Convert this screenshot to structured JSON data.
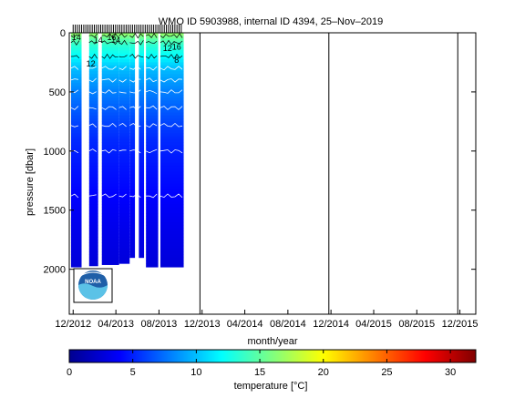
{
  "chart_data": {
    "type": "heatmap",
    "title": "WMO ID 5903988, internal ID 4394, 25–Nov–2019",
    "xlabel": "month/year",
    "ylabel": "pressure [dbar]",
    "x_tick_labels": [
      "12/2012",
      "04/2013",
      "08/2013",
      "12/2013",
      "04/2014",
      "08/2014",
      "12/2014",
      "04/2015",
      "08/2015",
      "12/2015"
    ],
    "x_range": [
      "2012-11-20",
      "2016-01-15"
    ],
    "ylim": [
      0,
      2380
    ],
    "y_reversed": true,
    "y_ticks": [
      0,
      500,
      1000,
      1500,
      2000
    ],
    "grid": false,
    "vertical_lines": [
      "2013-11-25",
      "2014-11-25",
      "2015-11-25"
    ],
    "colorbar": {
      "label": "temperature [°C]",
      "range": [
        0,
        32
      ],
      "ticks": [
        0,
        5,
        10,
        15,
        20,
        25,
        30
      ],
      "colormap": "jet"
    },
    "profile_dates": [
      "2012-12-01",
      "2012-12-07",
      "2012-12-13",
      "2012-12-19",
      "2012-12-25",
      "2012-12-31",
      "2013-01-06",
      "2013-01-12",
      "2013-01-18",
      "2013-01-24",
      "2013-01-30",
      "2013-02-05",
      "2013-02-11",
      "2013-02-17",
      "2013-02-23",
      "2013-03-01",
      "2013-03-07",
      "2013-03-13",
      "2013-03-19",
      "2013-03-25",
      "2013-03-31",
      "2013-04-06",
      "2013-04-12",
      "2013-04-18",
      "2013-04-24",
      "2013-04-30",
      "2013-05-06",
      "2013-05-12",
      "2013-05-18",
      "2013-05-24",
      "2013-05-30",
      "2013-06-05",
      "2013-06-11",
      "2013-06-17",
      "2013-06-23",
      "2013-06-29",
      "2013-07-05",
      "2013-07-11",
      "2013-07-17",
      "2013-07-23",
      "2013-07-29",
      "2013-08-04",
      "2013-08-10",
      "2013-08-16",
      "2013-08-22",
      "2013-08-28",
      "2013-09-03",
      "2013-09-09",
      "2013-09-15",
      "2013-09-21",
      "2013-09-27",
      "2013-10-03"
    ],
    "data_spans": [
      {
        "start": "2012-11-25",
        "end": "2012-12-25",
        "max_pressure": 1980
      },
      {
        "start": "2013-01-15",
        "end": "2013-02-10",
        "max_pressure": 1970
      },
      {
        "start": "2013-02-20",
        "end": "2013-04-10",
        "max_pressure": 1960
      },
      {
        "start": "2013-04-10",
        "end": "2013-05-10",
        "max_pressure": 1950
      },
      {
        "start": "2013-05-10",
        "end": "2013-06-20",
        "max_pressure": 1900
      },
      {
        "start": "2013-06-25",
        "end": "2013-07-30",
        "max_pressure": 1980
      },
      {
        "start": "2013-08-05",
        "end": "2013-10-10",
        "max_pressure": 1980
      }
    ],
    "data_gaps": [
      {
        "start": "2012-12-25",
        "end": "2013-01-15",
        "from_pressure": 0,
        "to_pressure": 2380
      },
      {
        "start": "2013-02-10",
        "end": "2013-02-20",
        "from_pressure": 0,
        "to_pressure": 2380
      },
      {
        "start": "2013-05-25",
        "end": "2013-06-05",
        "from_pressure": 0,
        "to_pressure": 2380
      },
      {
        "start": "2013-06-20",
        "end": "2013-06-25",
        "from_pressure": 0,
        "to_pressure": 2380
      },
      {
        "start": "2013-07-30",
        "end": "2013-08-05",
        "from_pressure": 0,
        "to_pressure": 2380
      },
      {
        "start": "2012-11-20",
        "end": "2012-11-25",
        "from_pressure": 0,
        "to_pressure": 1560
      }
    ],
    "temperature_profile": {
      "pressure": [
        0,
        50,
        100,
        200,
        300,
        500,
        700,
        900,
        1100,
        1300,
        1500,
        1700,
        2000
      ],
      "temperature": [
        17,
        15,
        13.5,
        12,
        10,
        8,
        6.5,
        5.3,
        4.7,
        4.2,
        3.7,
        3.3,
        2.8
      ]
    },
    "contour_labels": [
      {
        "date": "2012-12-10",
        "pressure": 40,
        "text": "14"
      },
      {
        "date": "2013-01-20",
        "pressure": 260,
        "text": "12"
      },
      {
        "date": "2013-02-10",
        "pressure": 60,
        "text": "14"
      },
      {
        "date": "2013-03-20",
        "pressure": 40,
        "text": "16"
      },
      {
        "date": "2013-04-01",
        "pressure": 60,
        "text": "14"
      },
      {
        "date": "2013-08-25",
        "pressure": 130,
        "text": "12"
      },
      {
        "date": "2013-09-20",
        "pressure": 120,
        "text": "16"
      },
      {
        "date": "2013-09-20",
        "pressure": 230,
        "text": "8"
      }
    ]
  },
  "logo": {
    "text": "NOAA",
    "name": "noaa-logo"
  }
}
